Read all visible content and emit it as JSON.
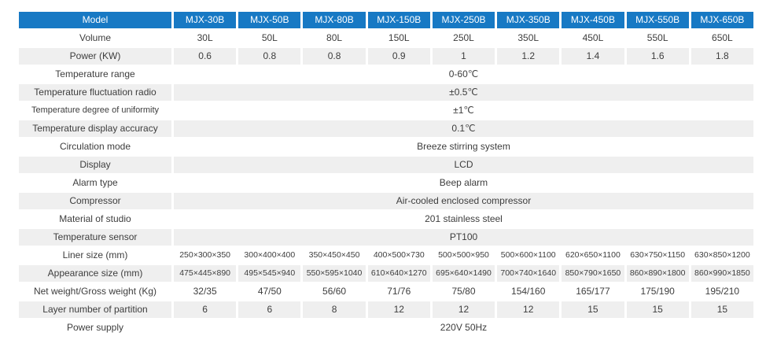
{
  "table": {
    "header": {
      "label": "Model",
      "models": [
        "MJX-30B",
        "MJX-50B",
        "MJX-80B",
        "MJX-150B",
        "MJX-250B",
        "MJX-350B",
        "MJX-450B",
        "MJX-550B",
        "MJX-650B"
      ]
    },
    "rows": [
      {
        "label": "Volume",
        "values": [
          "30L",
          "50L",
          "80L",
          "150L",
          "250L",
          "350L",
          "450L",
          "550L",
          "650L"
        ]
      },
      {
        "label": "Power (KW)",
        "values": [
          "0.6",
          "0.8",
          "0.8",
          "0.9",
          "1",
          "1.2",
          "1.4",
          "1.6",
          "1.8"
        ]
      },
      {
        "label": "Temperature range",
        "value": "0-60℃"
      },
      {
        "label": "Temperature fluctuation radio",
        "value": "±0.5℃"
      },
      {
        "label": "Temperature degree of uniformity",
        "value": "±1℃"
      },
      {
        "label": "Temperature display accuracy",
        "value": "0.1℃"
      },
      {
        "label": "Circulation mode",
        "value": "Breeze stirring system"
      },
      {
        "label": "Display",
        "value": "LCD"
      },
      {
        "label": "Alarm type",
        "value": "Beep alarm"
      },
      {
        "label": "Compressor",
        "value": "Air-cooled enclosed compressor"
      },
      {
        "label": "Material of studio",
        "value": "201 stainless steel"
      },
      {
        "label": "Temperature sensor",
        "value": "PT100"
      },
      {
        "label": "Liner size (mm)",
        "values": [
          "250×300×350",
          "300×400×400",
          "350×450×450",
          "400×500×730",
          "500×500×950",
          "500×600×1100",
          "620×650×1100",
          "630×750×1150",
          "630×850×1200"
        ]
      },
      {
        "label": "Appearance size (mm)",
        "values": [
          "475×445×890",
          "495×545×940",
          "550×595×1040",
          "610×640×1270",
          "695×640×1490",
          "700×740×1640",
          "850×790×1650",
          "860×890×1800",
          "860×990×1850"
        ]
      },
      {
        "label": "Net weight/Gross weight (Kg)",
        "values": [
          "32/35",
          "47/50",
          "56/60",
          "71/76",
          "75/80",
          "154/160",
          "165/177",
          "175/190",
          "195/210"
        ]
      },
      {
        "label": "Layer number of partition",
        "values": [
          "6",
          "6",
          "8",
          "12",
          "12",
          "12",
          "15",
          "15",
          "15"
        ]
      },
      {
        "label": "Power supply",
        "value": "220V 50Hz"
      }
    ],
    "colors": {
      "header_bg": "#1779C4",
      "header_text": "#FFFFFF",
      "stripe_bg": "#EFEFEF",
      "body_text": "#3D3D3D"
    }
  }
}
